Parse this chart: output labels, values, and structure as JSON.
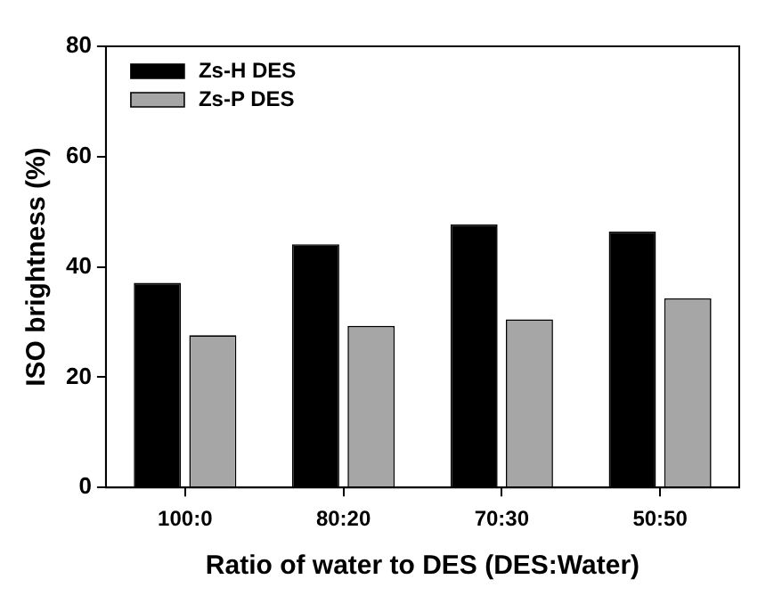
{
  "chart_data": {
    "type": "bar",
    "xlabel": "Ratio of water to DES (DES:Water)",
    "ylabel": "ISO brightness (%)",
    "categories": [
      "100:0",
      "80:20",
      "70:30",
      "50:50"
    ],
    "series": [
      {
        "name": "Zs-H DES",
        "color": "#000000",
        "values": [
          37.1,
          44.1,
          47.7,
          46.4
        ]
      },
      {
        "name": "Zs-P DES",
        "color": "#a6a6a6",
        "values": [
          27.6,
          29.3,
          30.5,
          34.3
        ]
      }
    ],
    "ylim": [
      0,
      80
    ],
    "yticks": [
      0,
      20,
      40,
      60,
      80
    ],
    "grid": false,
    "legend": "top left"
  }
}
